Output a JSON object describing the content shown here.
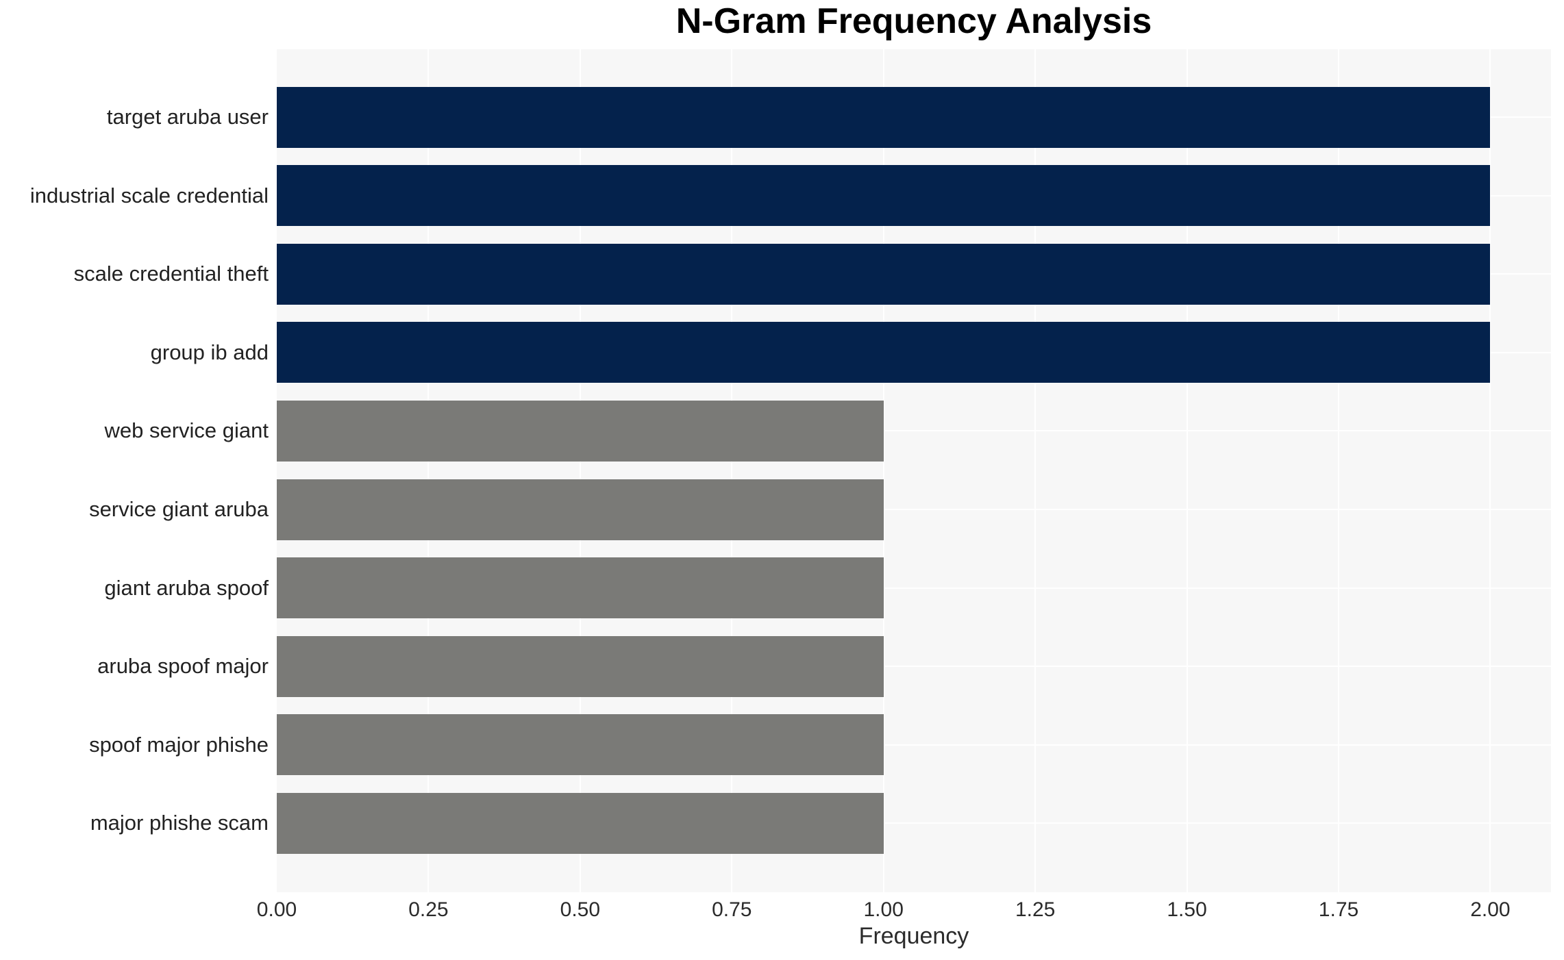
{
  "chart_data": {
    "type": "bar",
    "orientation": "horizontal",
    "title": "N-Gram Frequency Analysis",
    "xlabel": "Frequency",
    "ylabel": "",
    "categories": [
      "target aruba user",
      "industrial scale credential",
      "scale credential theft",
      "group ib add",
      "web service giant",
      "service giant aruba",
      "giant aruba spoof",
      "aruba spoof major",
      "spoof major phishe",
      "major phishe scam"
    ],
    "values": [
      2,
      2,
      2,
      2,
      1,
      1,
      1,
      1,
      1,
      1
    ],
    "bar_colors": [
      "#04224c",
      "#04224c",
      "#04224c",
      "#04224c",
      "#7a7a77",
      "#7a7a77",
      "#7a7a77",
      "#7a7a77",
      "#7a7a77",
      "#7a7a77"
    ],
    "xlim": [
      0,
      2.1
    ],
    "xticks": [
      0,
      0.25,
      0.5,
      0.75,
      1.0,
      1.25,
      1.5,
      1.75,
      2.0
    ],
    "xtick_labels": [
      "0.00",
      "0.25",
      "0.50",
      "0.75",
      "1.00",
      "1.25",
      "1.50",
      "1.75",
      "2.00"
    ],
    "grid": true,
    "legend": null,
    "colors": {
      "plot_background": "#f7f7f7",
      "gridline": "#ffffff",
      "high_freq_bar": "#04224c",
      "low_freq_bar": "#7a7a77",
      "title_text": "#000000",
      "tick_text": "#2b2b2b"
    }
  }
}
